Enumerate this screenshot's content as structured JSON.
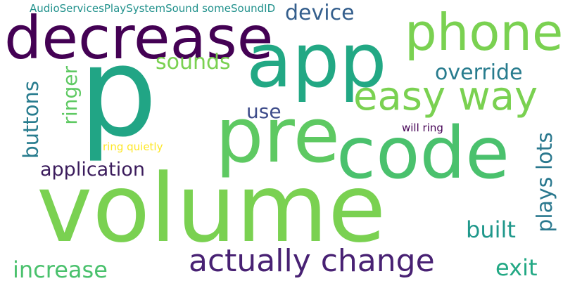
{
  "words": [
    {
      "id": "volume",
      "text": "volume",
      "color": "#7ad151"
    },
    {
      "id": "p",
      "text": "p",
      "color": "#21a585"
    },
    {
      "id": "app",
      "text": "app",
      "color": "#22a884"
    },
    {
      "id": "pre",
      "text": "pre",
      "color": "#5ec962"
    },
    {
      "id": "code",
      "text": "code",
      "color": "#4ac16d"
    },
    {
      "id": "decrease",
      "text": "decrease",
      "color": "#440154"
    },
    {
      "id": "phone",
      "text": "phone",
      "color": "#7ad151"
    },
    {
      "id": "easy-way",
      "text": "easy way",
      "color": "#7ad151"
    },
    {
      "id": "actually-change",
      "text": "actually change",
      "color": "#482173"
    },
    {
      "id": "application",
      "text": "application",
      "color": "#3b1c5c"
    },
    {
      "id": "increase",
      "text": "increase",
      "color": "#4ac16d"
    },
    {
      "id": "device",
      "text": "device",
      "color": "#355f8d"
    },
    {
      "id": "sounds",
      "text": "sounds",
      "color": "#7ad151"
    },
    {
      "id": "override",
      "text": "override",
      "color": "#287c8e"
    },
    {
      "id": "use",
      "text": "use",
      "color": "#3e4c8a"
    },
    {
      "id": "built",
      "text": "built",
      "color": "#1f988b"
    },
    {
      "id": "exit",
      "text": "exit",
      "color": "#22a884"
    },
    {
      "id": "will-ring",
      "text": "will ring",
      "color": "#440154"
    },
    {
      "id": "ring-quietly",
      "text": "ring quietly",
      "color": "#fde725"
    },
    {
      "id": "audio-services",
      "text": "AudioServicesPlaySystemSound someSoundID",
      "color": "#21918c"
    },
    {
      "id": "ringer",
      "text": "ringer",
      "color": "#5ec962"
    },
    {
      "id": "buttons",
      "text": "buttons",
      "color": "#287c8e"
    },
    {
      "id": "plays-lots",
      "text": "plays lots",
      "color": "#2a788e"
    }
  ]
}
